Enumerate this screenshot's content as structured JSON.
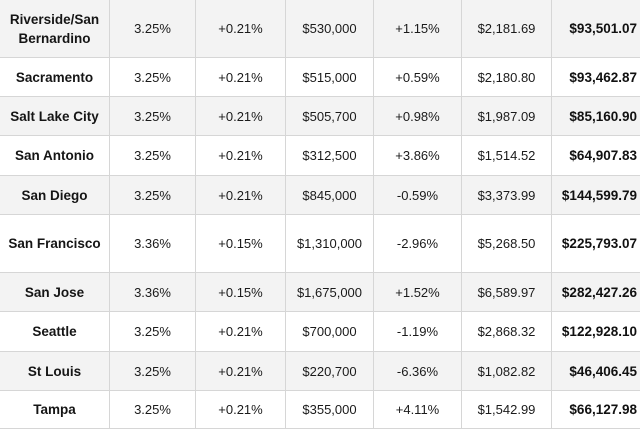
{
  "rows": [
    {
      "city": "Riverside/San Bernardino",
      "rate": "3.25%",
      "rate_change": "+0.21%",
      "price": "$530,000",
      "price_change": "+1.15%",
      "monthly_payment": "$2,181.69",
      "income": "$93,501.07"
    },
    {
      "city": "Sacramento",
      "rate": "3.25%",
      "rate_change": "+0.21%",
      "price": "$515,000",
      "price_change": "+0.59%",
      "monthly_payment": "$2,180.80",
      "income": "$93,462.87"
    },
    {
      "city": "Salt Lake City",
      "rate": "3.25%",
      "rate_change": "+0.21%",
      "price": "$505,700",
      "price_change": "+0.98%",
      "monthly_payment": "$1,987.09",
      "income": "$85,160.90"
    },
    {
      "city": "San Antonio",
      "rate": "3.25%",
      "rate_change": "+0.21%",
      "price": "$312,500",
      "price_change": "+3.86%",
      "monthly_payment": "$1,514.52",
      "income": "$64,907.83"
    },
    {
      "city": "San Diego",
      "rate": "3.25%",
      "rate_change": "+0.21%",
      "price": "$845,000",
      "price_change": "-0.59%",
      "monthly_payment": "$3,373.99",
      "income": "$144,599.79"
    },
    {
      "city": "San Francisco",
      "rate": "3.36%",
      "rate_change": "+0.15%",
      "price": "$1,310,000",
      "price_change": "-2.96%",
      "monthly_payment": "$5,268.50",
      "income": "$225,793.07"
    },
    {
      "city": "San Jose",
      "rate": "3.36%",
      "rate_change": "+0.15%",
      "price": "$1,675,000",
      "price_change": "+1.52%",
      "monthly_payment": "$6,589.97",
      "income": "$282,427.26"
    },
    {
      "city": "Seattle",
      "rate": "3.25%",
      "rate_change": "+0.21%",
      "price": "$700,000",
      "price_change": "-1.19%",
      "monthly_payment": "$2,868.32",
      "income": "$122,928.10"
    },
    {
      "city": "St Louis",
      "rate": "3.25%",
      "rate_change": "+0.21%",
      "price": "$220,700",
      "price_change": "-6.36%",
      "monthly_payment": "$1,082.82",
      "income": "$46,406.45"
    },
    {
      "city": "Tampa",
      "rate": "3.25%",
      "rate_change": "+0.21%",
      "price": "$355,000",
      "price_change": "+4.11%",
      "monthly_payment": "$1,542.99",
      "income": "$66,127.98"
    }
  ]
}
